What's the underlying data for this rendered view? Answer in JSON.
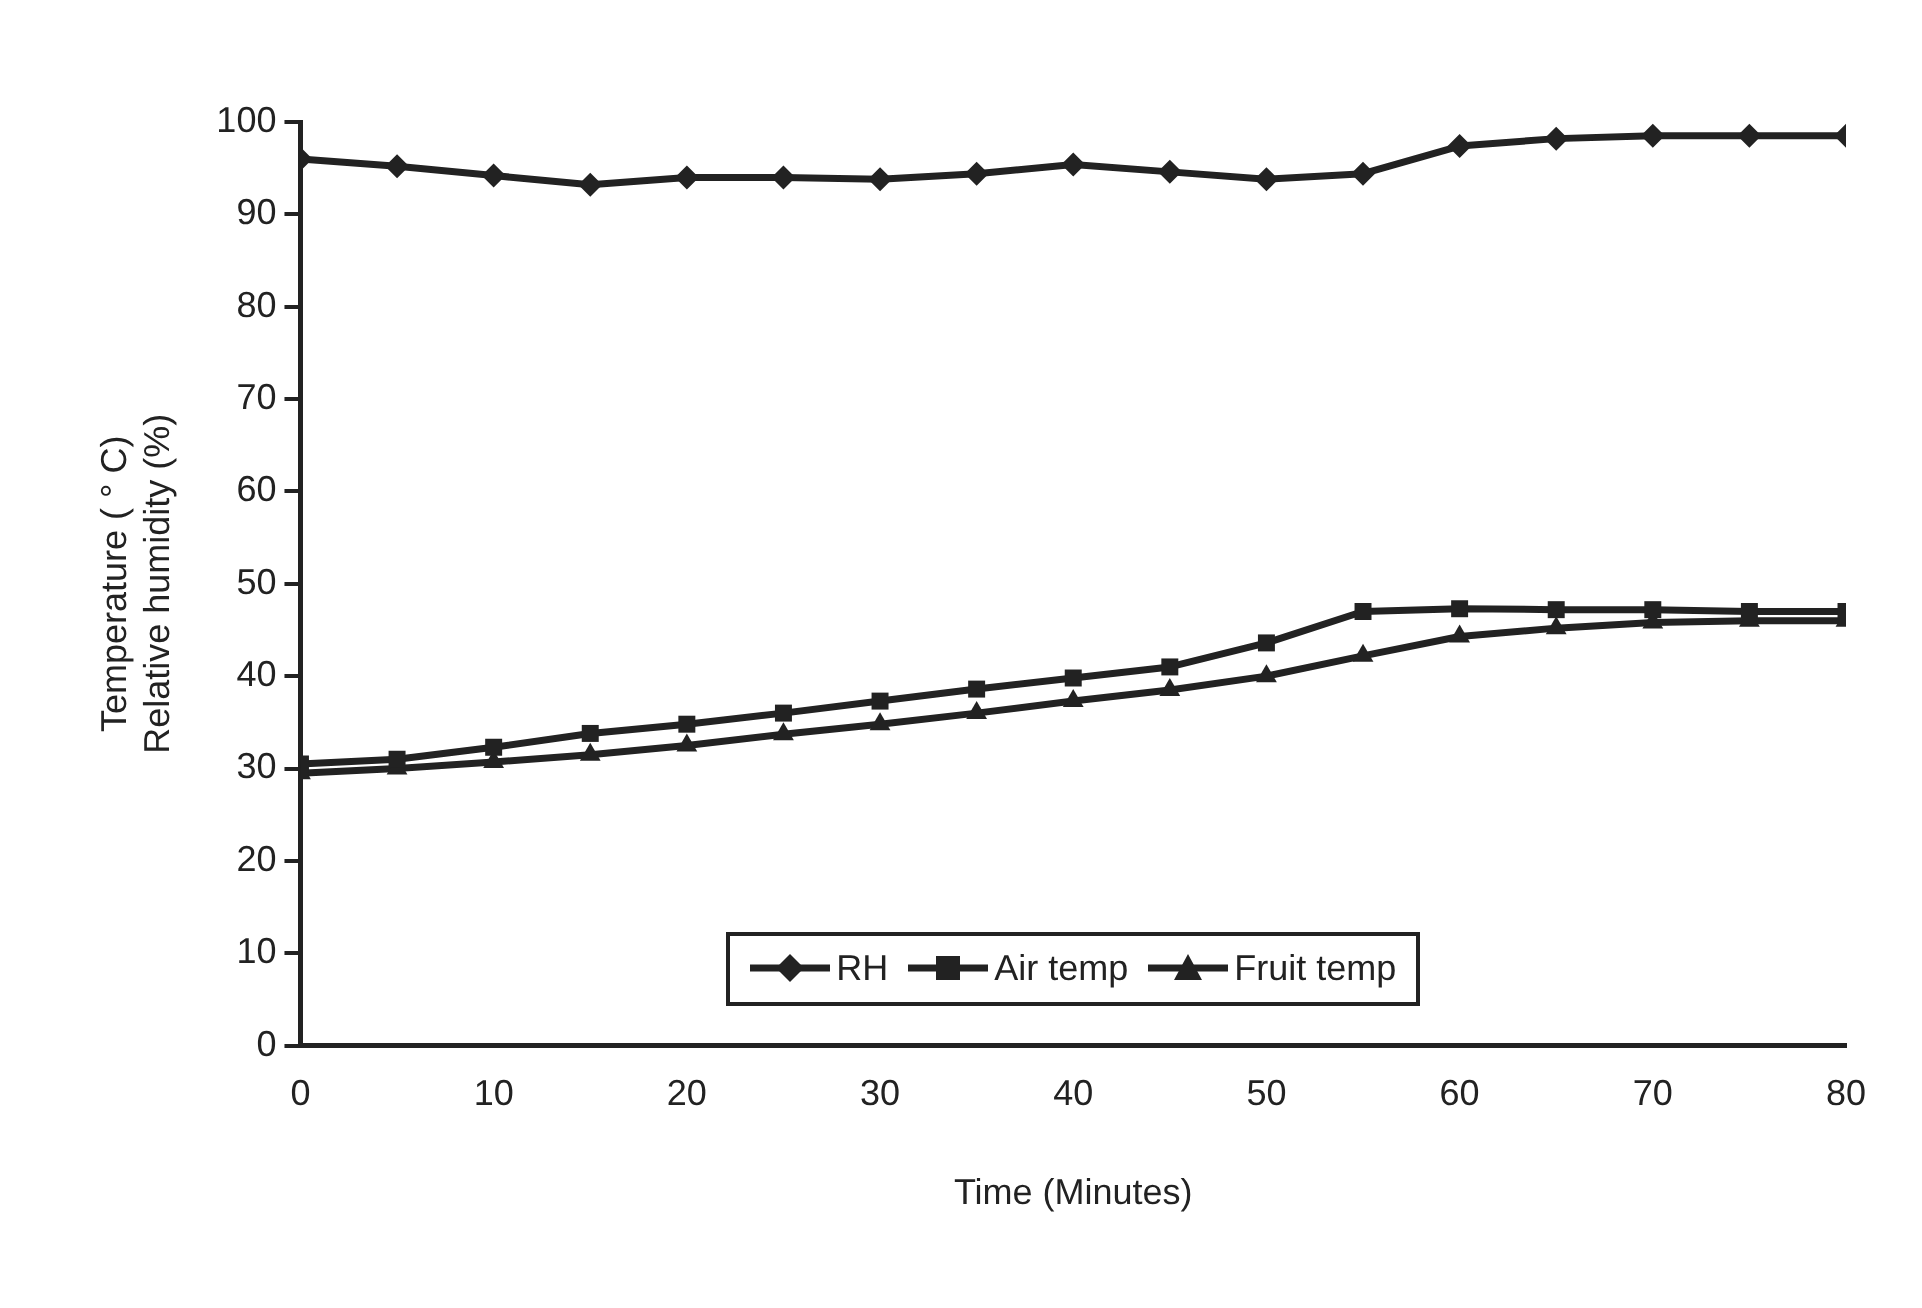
{
  "chart_data": {
    "type": "line",
    "xlabel": "Time (Minutes)",
    "ylabel": "Temperature ( ° C)\nRelative humidity (%)",
    "x": [
      0,
      5,
      10,
      15,
      20,
      25,
      30,
      35,
      40,
      45,
      50,
      55,
      60,
      65,
      70,
      75,
      80
    ],
    "xlim": [
      0,
      80
    ],
    "xticks": [
      0,
      10,
      20,
      30,
      40,
      50,
      60,
      70,
      80
    ],
    "ylim": [
      0,
      100
    ],
    "yticks": [
      0,
      10,
      20,
      30,
      40,
      50,
      60,
      70,
      80,
      90,
      100
    ],
    "grid": false,
    "legend": "bottom",
    "line_style": "solid",
    "series": [
      {
        "name": "RH",
        "color": "#222222",
        "marker": "diamond",
        "values": [
          96,
          95.2,
          94.2,
          93.2,
          94,
          94,
          93.8,
          94.4,
          95.4,
          94.6,
          93.8,
          94.4,
          97.4,
          98.2,
          98.5,
          98.5,
          98.5
        ]
      },
      {
        "name": "Air temp",
        "color": "#222222",
        "marker": "square",
        "values": [
          30.5,
          31,
          32.3,
          33.8,
          34.8,
          36,
          37.3,
          38.6,
          39.8,
          41,
          43.6,
          47,
          47.3,
          47.2,
          47.2,
          47,
          47
        ]
      },
      {
        "name": "Fruit temp",
        "color": "#222222",
        "marker": "triangle",
        "values": [
          29.5,
          30,
          30.7,
          31.5,
          32.5,
          33.7,
          34.8,
          36,
          37.3,
          38.5,
          40,
          42.2,
          44.3,
          45.2,
          45.8,
          46,
          46
        ]
      }
    ]
  }
}
